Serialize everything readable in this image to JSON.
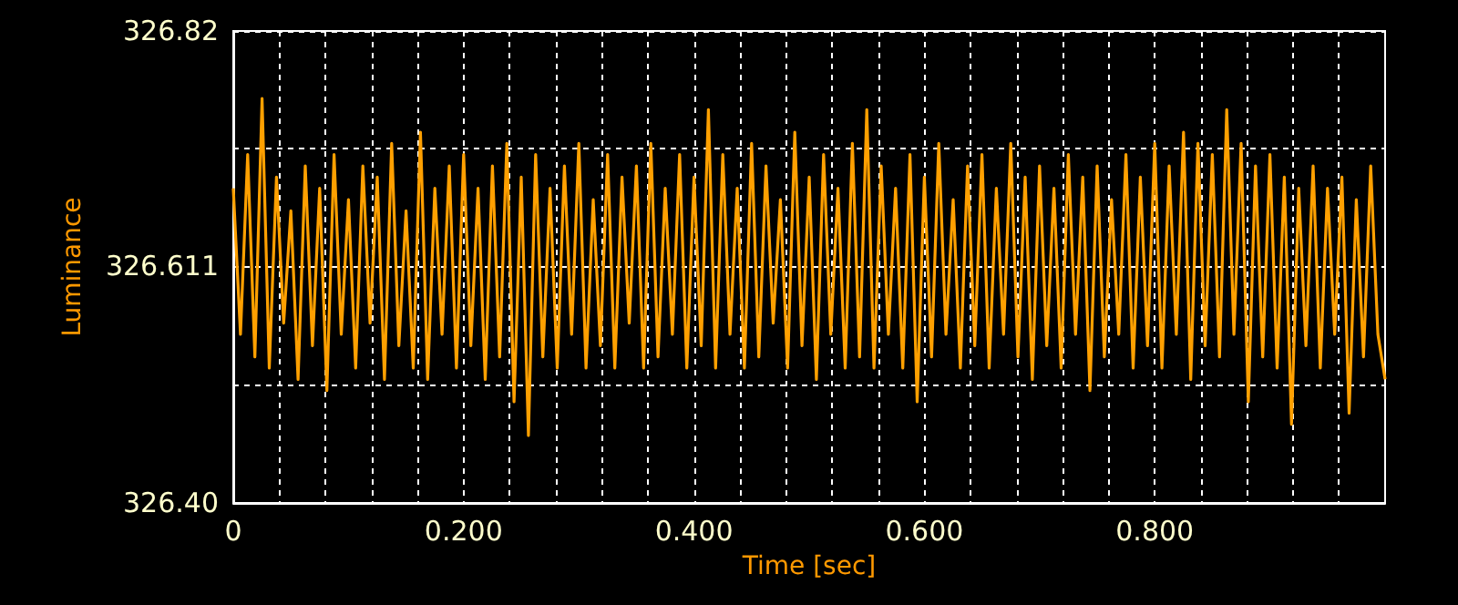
{
  "chart_data": {
    "type": "line",
    "xlabel": "Time [sec]",
    "ylabel": "Luminance",
    "xlim": [
      0,
      1.0
    ],
    "ylim": [
      326.4,
      326.82
    ],
    "xticks": [
      0,
      {
        "value": 0.04,
        "label": null
      },
      {
        "value": 0.08,
        "label": null
      },
      {
        "value": 0.12,
        "label": null
      },
      {
        "value": 0.16,
        "label": null
      },
      {
        "value": 0.2,
        "label": "0.200"
      },
      {
        "value": 0.24,
        "label": null
      },
      {
        "value": 0.28,
        "label": null
      },
      {
        "value": 0.32,
        "label": null
      },
      {
        "value": 0.36,
        "label": null
      },
      {
        "value": 0.4,
        "label": "0.400"
      },
      {
        "value": 0.44,
        "label": null
      },
      {
        "value": 0.48,
        "label": null
      },
      {
        "value": 0.52,
        "label": null
      },
      {
        "value": 0.56,
        "label": null
      },
      {
        "value": 0.6,
        "label": "0.600"
      },
      {
        "value": 0.64,
        "label": null
      },
      {
        "value": 0.68,
        "label": null
      },
      {
        "value": 0.72,
        "label": null
      },
      {
        "value": 0.76,
        "label": null
      },
      {
        "value": 0.8,
        "label": "0.800"
      },
      {
        "value": 0.84,
        "label": null
      },
      {
        "value": 0.88,
        "label": null
      },
      {
        "value": 0.92,
        "label": null
      },
      {
        "value": 0.96,
        "label": null
      }
    ],
    "yticks": [
      {
        "value": 326.4,
        "label": "326.40"
      },
      {
        "value": 326.505,
        "label": null
      },
      326.611,
      {
        "value": 326.716,
        "label": null
      },
      326.82
    ],
    "grid": true,
    "marker": "none",
    "line_style": "solid",
    "x": [
      0,
      0.00625,
      0.0125,
      0.01875,
      0.025,
      0.03125,
      0.0375,
      0.04375,
      0.05,
      0.05625,
      0.0625,
      0.06875,
      0.075,
      0.08125,
      0.0875,
      0.09375,
      0.1,
      0.10625,
      0.1125,
      0.11875,
      0.125,
      0.13125,
      0.1375,
      0.14375,
      0.15,
      0.15625,
      0.1625,
      0.16875,
      0.175,
      0.18125,
      0.1875,
      0.19375,
      0.2,
      0.20625,
      0.2125,
      0.21875,
      0.225,
      0.23125,
      0.2375,
      0.24375,
      0.25,
      0.25625,
      0.2625,
      0.26875,
      0.275,
      0.28125,
      0.2875,
      0.29375,
      0.3,
      0.30625,
      0.3125,
      0.31875,
      0.325,
      0.33125,
      0.3375,
      0.34375,
      0.35,
      0.35625,
      0.3625,
      0.36875,
      0.375,
      0.38125,
      0.3875,
      0.39375,
      0.4,
      0.40625,
      0.4125,
      0.41875,
      0.425,
      0.43125,
      0.4375,
      0.44375,
      0.45,
      0.45625,
      0.4625,
      0.46875,
      0.475,
      0.48125,
      0.4875,
      0.49375,
      0.5,
      0.50625,
      0.5125,
      0.51875,
      0.525,
      0.53125,
      0.5375,
      0.54375,
      0.55,
      0.55625,
      0.5625,
      0.56875,
      0.575,
      0.58125,
      0.5875,
      0.59375,
      0.6,
      0.60625,
      0.6125,
      0.61875,
      0.625,
      0.63125,
      0.6375,
      0.64375,
      0.65,
      0.65625,
      0.6625,
      0.66875,
      0.675,
      0.68125,
      0.6875,
      0.69375,
      0.7,
      0.70625,
      0.7125,
      0.71875,
      0.725,
      0.73125,
      0.7375,
      0.74375,
      0.75,
      0.75625,
      0.7625,
      0.76875,
      0.775,
      0.78125,
      0.7875,
      0.79375,
      0.8,
      0.80625,
      0.8125,
      0.81875,
      0.825,
      0.83125,
      0.8375,
      0.84375,
      0.85,
      0.85625,
      0.8625,
      0.86875,
      0.875,
      0.88125,
      0.8875,
      0.89375,
      0.9,
      0.90625,
      0.9125,
      0.91875,
      0.925,
      0.93125,
      0.9375,
      0.94375,
      0.95,
      0.95625,
      0.9625,
      0.96875,
      0.975,
      0.98125,
      0.9875,
      0.99375,
      1.0
    ],
    "series": [
      {
        "color": "#ffa000",
        "values": [
          326.68,
          326.55,
          326.71,
          326.53,
          326.76,
          326.52,
          326.69,
          326.56,
          326.66,
          326.51,
          326.7,
          326.54,
          326.68,
          326.5,
          326.71,
          326.55,
          326.67,
          326.52,
          326.7,
          326.56,
          326.69,
          326.51,
          326.72,
          326.54,
          326.66,
          326.52,
          326.73,
          326.51,
          326.68,
          326.55,
          326.7,
          326.52,
          326.71,
          326.54,
          326.68,
          326.51,
          326.7,
          326.53,
          326.72,
          326.49,
          326.69,
          326.46,
          326.71,
          326.53,
          326.68,
          326.52,
          326.7,
          326.55,
          326.72,
          326.52,
          326.67,
          326.54,
          326.71,
          326.52,
          326.69,
          326.56,
          326.7,
          326.52,
          326.72,
          326.53,
          326.68,
          326.55,
          326.71,
          326.52,
          326.69,
          326.54,
          326.75,
          326.52,
          326.71,
          326.55,
          326.68,
          326.52,
          326.72,
          326.53,
          326.7,
          326.56,
          326.67,
          326.52,
          326.73,
          326.54,
          326.69,
          326.51,
          326.71,
          326.55,
          326.68,
          326.52,
          326.72,
          326.53,
          326.75,
          326.52,
          326.7,
          326.55,
          326.68,
          326.52,
          326.71,
          326.49,
          326.69,
          326.53,
          326.72,
          326.55,
          326.67,
          326.52,
          326.7,
          326.54,
          326.71,
          326.52,
          326.68,
          326.55,
          326.72,
          326.53,
          326.69,
          326.51,
          326.7,
          326.54,
          326.68,
          326.52,
          326.71,
          326.55,
          326.69,
          326.5,
          326.7,
          326.53,
          326.67,
          326.55,
          326.71,
          326.52,
          326.69,
          326.54,
          326.72,
          326.52,
          326.7,
          326.55,
          326.73,
          326.51,
          326.72,
          326.54,
          326.71,
          326.53,
          326.75,
          326.55,
          326.72,
          326.49,
          326.7,
          326.53,
          326.71,
          326.52,
          326.69,
          326.47,
          326.68,
          326.54,
          326.7,
          326.52,
          326.68,
          326.55,
          326.69,
          326.48,
          326.67,
          326.53,
          326.7,
          326.55,
          326.51
        ]
      }
    ]
  }
}
